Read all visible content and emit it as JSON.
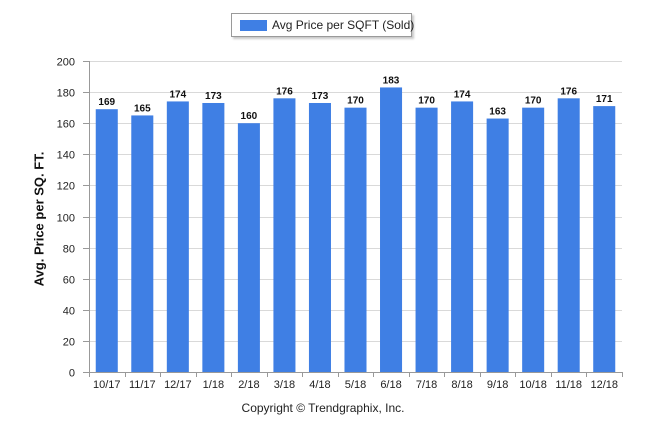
{
  "chart_data": {
    "type": "bar",
    "categories": [
      "10/17",
      "11/17",
      "12/17",
      "1/18",
      "2/18",
      "3/18",
      "4/18",
      "5/18",
      "6/18",
      "7/18",
      "8/18",
      "9/18",
      "10/18",
      "11/18",
      "12/18"
    ],
    "series": [
      {
        "name": "Avg Price per SQFT (Sold)",
        "values": [
          169,
          165,
          174,
          173,
          160,
          176,
          173,
          170,
          183,
          170,
          174,
          163,
          170,
          176,
          171
        ],
        "color": "#3f7fe4"
      }
    ],
    "title": "",
    "xlabel": "",
    "ylabel": "Avg. Price per SQ. FT.",
    "ylim": [
      0,
      200
    ],
    "yticks": [
      0,
      20,
      40,
      60,
      80,
      100,
      120,
      140,
      160,
      180,
      200
    ],
    "grid": true,
    "legend_position": "top-center"
  },
  "footer": {
    "copyright": "Copyright © Trendgraphix, Inc."
  }
}
